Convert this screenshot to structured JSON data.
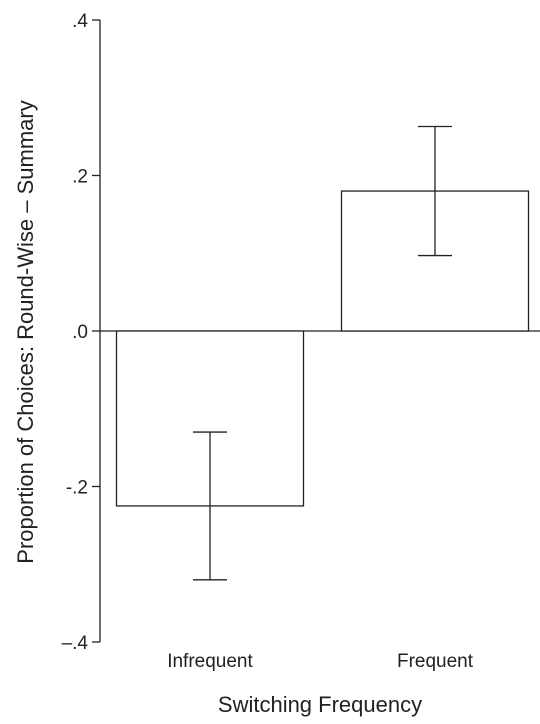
{
  "chart_data": {
    "type": "bar",
    "xlabel": "Switching Frequency",
    "ylabel": "Proportion of Choices: Round-Wise – Summary",
    "categories": [
      "Infrequent",
      "Frequent"
    ],
    "values": [
      -0.225,
      0.18
    ],
    "error_low": [
      -0.32,
      0.097
    ],
    "error_high": [
      -0.13,
      0.263
    ],
    "ylim": [
      -0.4,
      0.4
    ],
    "yticks": [
      -0.4,
      -0.2,
      0.0,
      0.2,
      0.4
    ],
    "ytick_labels": [
      "–.4",
      "-.2",
      ".0",
      ".2",
      ".4"
    ],
    "grid": false,
    "colors": {
      "bar_fill": "#ffffff",
      "stroke": "#222222"
    }
  }
}
